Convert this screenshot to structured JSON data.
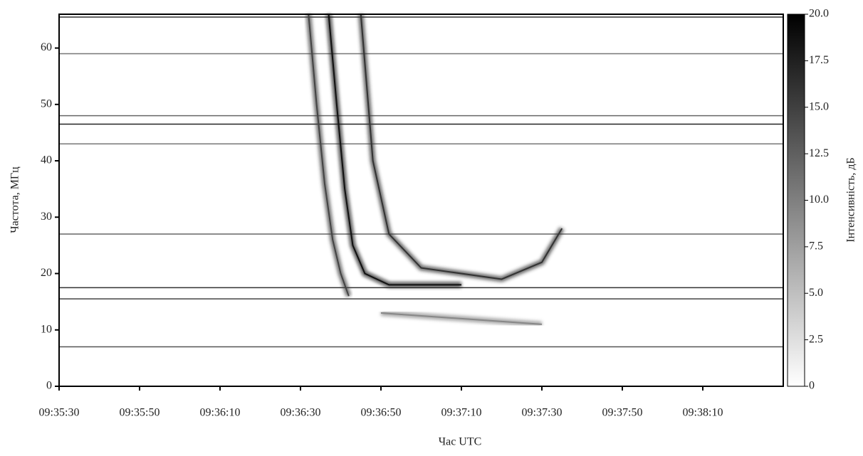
{
  "chart_data": {
    "type": "spectrogram",
    "xlabel": "Час UTC",
    "ylabel": "Частота, МГц",
    "xlim": [
      34530,
      34710
    ],
    "xticks": [
      {
        "value": 34530,
        "label": "09:35:30"
      },
      {
        "value": 34550,
        "label": "09:35:50"
      },
      {
        "value": 34570,
        "label": "09:36:10"
      },
      {
        "value": 34590,
        "label": "09:36:30"
      },
      {
        "value": 34610,
        "label": "09:36:50"
      },
      {
        "value": 34630,
        "label": "09:37:10"
      },
      {
        "value": 34650,
        "label": "09:37:30"
      },
      {
        "value": 34670,
        "label": "09:37:50"
      },
      {
        "value": 34690,
        "label": "09:38:10"
      }
    ],
    "ylim": [
      0,
      66
    ],
    "yticks": [
      0,
      10,
      20,
      30,
      40,
      50,
      60
    ],
    "colorbar": {
      "label": "Інтенсивність, дБ",
      "cmap": [
        "#ffffff",
        "#000000"
      ],
      "lim": [
        0,
        20
      ],
      "ticks": [
        0,
        2.5,
        {
          "value": 5,
          "label": "5.0"
        },
        7.5,
        {
          "value": 10,
          "label": "10.0"
        },
        12.5,
        {
          "value": 15,
          "label": "15.0"
        },
        17.5,
        {
          "value": 20,
          "label": "20.0"
        }
      ]
    },
    "hlines": [
      {
        "values": 65.5,
        "color": "#333333"
      },
      {
        "values": 59,
        "color": "#777777"
      },
      {
        "values": 48,
        "color": "#666666"
      },
      {
        "values": 46.5,
        "color": "#222222"
      },
      {
        "values": 43,
        "color": "#777777"
      },
      {
        "values": 27,
        "color": "#666666"
      },
      {
        "values": 17.5,
        "color": "#333333"
      },
      {
        "values": 15.5,
        "color": "#444444"
      },
      {
        "values": 7,
        "color": "#555555"
      }
    ],
    "series": [
      {
        "color": "#444444",
        "x": [
          34592,
          34594,
          34596,
          34598,
          34600,
          34602
        ],
        "values": [
          66,
          50,
          36,
          26,
          20,
          16
        ]
      },
      {
        "color": "#111111",
        "x": [
          34597,
          34599,
          34601,
          34603,
          34606,
          34612,
          34630
        ],
        "values": [
          66,
          50,
          35,
          25,
          20,
          18,
          18
        ]
      },
      {
        "color": "#333333",
        "x": [
          34605,
          34608,
          34612,
          34620,
          34640,
          34650,
          34655
        ],
        "values": [
          66,
          40,
          27,
          21,
          19,
          22,
          28
        ]
      },
      {
        "color": "#888888",
        "x": [
          34610,
          34630,
          34650
        ],
        "values": [
          13,
          12,
          11
        ]
      }
    ]
  }
}
